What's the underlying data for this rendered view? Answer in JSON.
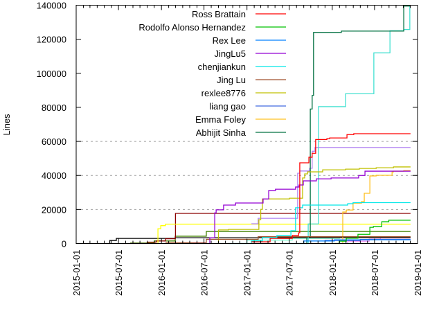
{
  "chart_data": {
    "type": "line",
    "style": "steps",
    "title": "",
    "xlabel": "",
    "ylabel": "Lines",
    "xlim": [
      "2015-01-01",
      "2019-01-01"
    ],
    "ylim": [
      0,
      140000
    ],
    "x_ticks": [
      "2015-01-01",
      "2015-07-01",
      "2016-01-01",
      "2016-07-01",
      "2017-01-01",
      "2017-07-01",
      "2018-01-01",
      "2018-07-01",
      "2019-01-01"
    ],
    "y_ticks": [
      "0",
      "20000",
      "40000",
      "60000",
      "80000",
      "100000",
      "120000",
      "140000"
    ],
    "grid_y": [
      20000,
      40000,
      60000
    ],
    "legend_position": "top-center",
    "end_date": "2018-12-02",
    "series": [
      {
        "name": "Ross Brattain",
        "color": "#ff0000",
        "points": [
          [
            "2017-01-20",
            1000
          ],
          [
            "2017-04-10",
            3000
          ],
          [
            "2017-07-14",
            4700
          ],
          [
            "2017-08-10",
            6300
          ],
          [
            "2017-08-15",
            47400
          ],
          [
            "2017-09-23",
            50700
          ],
          [
            "2017-10-07",
            53000
          ],
          [
            "2017-10-22",
            61100
          ],
          [
            "2017-12-09",
            61600
          ],
          [
            "2017-12-21",
            62000
          ],
          [
            "2018-03-05",
            64000
          ],
          [
            "2018-04-03",
            64500
          ]
        ]
      },
      {
        "name": "Rodolfo Alonso Hernandez",
        "color": "#00c000",
        "points": [
          [
            "2017-11-12",
            0
          ],
          [
            "2018-01-31",
            1400
          ],
          [
            "2018-03-02",
            3100
          ],
          [
            "2018-04-21",
            5400
          ],
          [
            "2018-06-11",
            9500
          ],
          [
            "2018-06-26",
            10000
          ],
          [
            "2018-08-01",
            12800
          ],
          [
            "2018-08-31",
            13700
          ]
        ]
      },
      {
        "name": "Rex Lee",
        "color": "#0080ff",
        "points": [
          [
            "2017-06-01",
            0
          ],
          [
            "2017-09-01",
            1500
          ],
          [
            "2018-01-10",
            2200
          ]
        ]
      },
      {
        "name": "JingLu5",
        "color": "#9400d3",
        "points": [
          [
            "2016-05-13",
            0
          ],
          [
            "2016-07-26",
            3400
          ],
          [
            "2016-08-16",
            18000
          ],
          [
            "2016-08-22",
            19800
          ],
          [
            "2016-09-23",
            22600
          ],
          [
            "2016-11-13",
            23800
          ],
          [
            "2017-03-11",
            26200
          ],
          [
            "2017-04-04",
            31100
          ],
          [
            "2017-05-03",
            31900
          ],
          [
            "2017-07-28",
            33200
          ],
          [
            "2017-08-12",
            34400
          ],
          [
            "2017-08-30",
            36800
          ],
          [
            "2017-10-25",
            38000
          ],
          [
            "2017-12-27",
            38500
          ],
          [
            "2018-04-24",
            40000
          ],
          [
            "2018-05-21",
            42500
          ]
        ]
      },
      {
        "name": "chenjiankun",
        "color": "#00e8e8",
        "points": [
          [
            "2016-10-14",
            0
          ],
          [
            "2017-01-20",
            1500
          ],
          [
            "2017-03-08",
            3500
          ],
          [
            "2017-05-09",
            4700
          ],
          [
            "2017-07-08",
            7500
          ],
          [
            "2017-07-28",
            21000
          ],
          [
            "2017-08-27",
            22600
          ],
          [
            "2018-03-08",
            23400
          ],
          [
            "2018-03-31",
            24000
          ]
        ]
      },
      {
        "name": "Jing Lu",
        "color": "#a0522d",
        "points": [
          [
            "2016-01-18",
            500
          ],
          [
            "2016-07-11",
            2500
          ],
          [
            "2017-02-18",
            4000
          ]
        ]
      },
      {
        "name": "rexlee8776",
        "color": "#c0c000",
        "points": [
          [
            "2016-08-22",
            0
          ],
          [
            "2016-09-01",
            8000
          ],
          [
            "2016-10-14",
            8300
          ],
          [
            "2017-02-21",
            14000
          ],
          [
            "2017-03-01",
            20100
          ],
          [
            "2017-03-08",
            26200
          ],
          [
            "2017-07-02",
            26600
          ],
          [
            "2017-08-27",
            38500
          ],
          [
            "2017-09-05",
            40900
          ],
          [
            "2017-09-17",
            42100
          ],
          [
            "2017-11-21",
            43300
          ],
          [
            "2018-02-27",
            43700
          ],
          [
            "2018-04-27",
            44100
          ],
          [
            "2018-07-08",
            44500
          ],
          [
            "2018-09-20",
            45000
          ]
        ]
      },
      {
        "name": "liang gao",
        "color": "#4169e1",
        "points": [
          [
            "2017-09-01",
            0
          ],
          [
            "2017-12-01",
            1800
          ],
          [
            "2018-05-01",
            2400
          ]
        ]
      },
      {
        "name": "Emma Foley",
        "color": "#ffc020",
        "points": [
          [
            "2018-01-10",
            0
          ],
          [
            "2018-02-15",
            18500
          ],
          [
            "2018-03-02",
            19700
          ],
          [
            "2018-03-31",
            23700
          ],
          [
            "2018-05-06",
            24600
          ],
          [
            "2018-05-18",
            29500
          ],
          [
            "2018-06-11",
            39700
          ],
          [
            "2018-07-08",
            40100
          ],
          [
            "2018-09-14",
            42100
          ],
          [
            "2018-09-20",
            42500
          ],
          [
            "2018-11-03",
            42900
          ]
        ]
      },
      {
        "name": "Abhijit Sinha",
        "color": "#007040",
        "points": [
          [
            "2017-09-11",
            0
          ],
          [
            "2017-09-14",
            4000
          ],
          [
            "2017-09-29",
            79000
          ],
          [
            "2017-10-07",
            87000
          ],
          [
            "2017-10-13",
            124000
          ],
          [
            "2018-02-09",
            124800
          ],
          [
            "2018-11-03",
            139500
          ]
        ]
      },
      {
        "color": "#40e0d0",
        "points": [
          [
            "2017-05-09",
            0
          ],
          [
            "2017-09-20",
            11500
          ],
          [
            "2017-11-03",
            80400
          ],
          [
            "2018-02-27",
            88000
          ],
          [
            "2018-06-28",
            112000
          ],
          [
            "2018-09-05",
            125000
          ],
          [
            "2018-11-03",
            125700
          ],
          [
            "2018-11-29",
            139000
          ]
        ]
      },
      {
        "color": "#b080f0",
        "points": [
          [
            "2017-01-20",
            11600
          ],
          [
            "2017-02-18",
            14800
          ],
          [
            "2017-08-06",
            41300
          ],
          [
            "2017-08-15",
            42600
          ],
          [
            "2017-09-26",
            44200
          ],
          [
            "2017-10-07",
            54200
          ],
          [
            "2017-10-19",
            56400
          ]
        ]
      },
      {
        "color": "#ffff00",
        "points": [
          [
            "2015-11-08",
            0
          ],
          [
            "2015-12-17",
            8700
          ],
          [
            "2015-12-29",
            10500
          ],
          [
            "2016-01-18",
            11400
          ]
        ]
      },
      {
        "color": "#8b0000",
        "points": [
          [
            "2015-07-15",
            0
          ],
          [
            "2015-11-01",
            800
          ],
          [
            "2015-12-10",
            1500
          ],
          [
            "2016-01-18",
            2800
          ],
          [
            "2016-02-29",
            3800
          ],
          [
            "2016-03-01",
            17700
          ]
        ]
      },
      {
        "color": "#000000",
        "points": [
          [
            "2015-05-08",
            0
          ],
          [
            "2015-05-25",
            1800
          ],
          [
            "2015-06-22",
            3000
          ],
          [
            "2016-02-29",
            3400
          ]
        ]
      },
      {
        "color": "#408000",
        "points": [
          [
            "2015-08-20",
            300
          ],
          [
            "2015-12-01",
            1500
          ],
          [
            "2016-02-29",
            4300
          ],
          [
            "2016-07-11",
            7100
          ]
        ]
      },
      {
        "color": "#ee82ee",
        "points": [
          [
            "2018-01-31",
            0
          ],
          [
            "2018-03-08",
            1400
          ],
          [
            "2018-06-08",
            2600
          ],
          [
            "2018-07-26",
            3200
          ]
        ]
      },
      {
        "color": "#7fffd4",
        "points": [
          [
            "2016-10-14",
            0
          ],
          [
            "2017-01-01",
            2000
          ],
          [
            "2017-07-14",
            3000
          ],
          [
            "2018-02-01",
            4000
          ]
        ]
      }
    ]
  }
}
